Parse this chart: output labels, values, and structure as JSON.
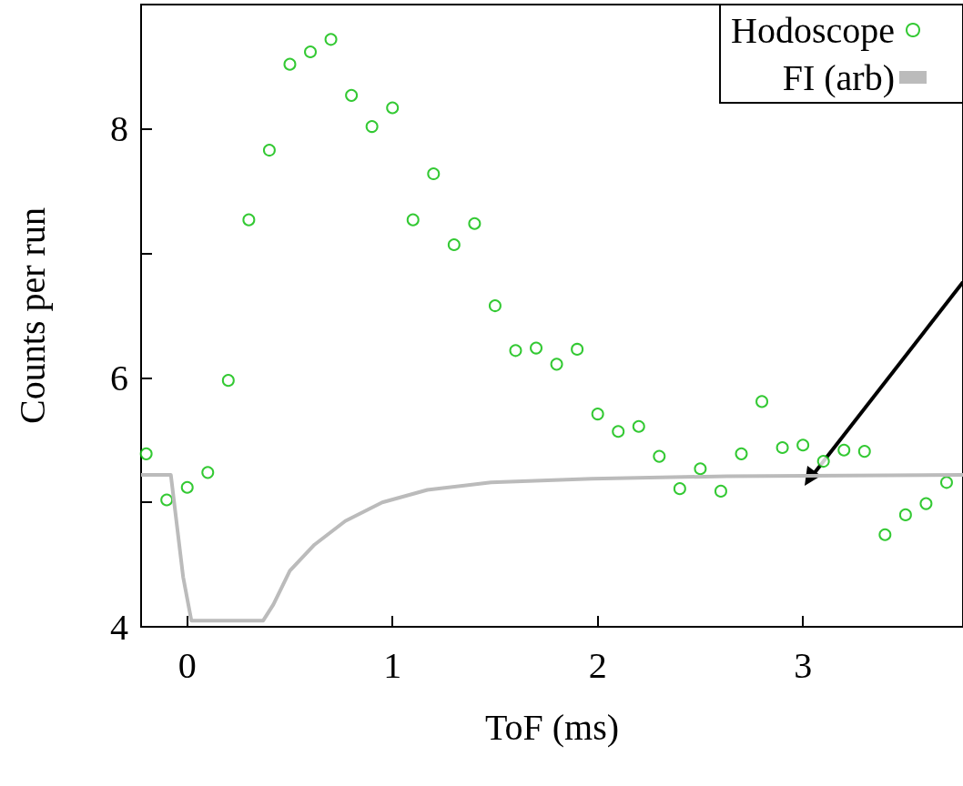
{
  "chart_data": {
    "type": "scatter",
    "xlabel": "ToF (ms)",
    "ylabel": "Counts per run",
    "xlim": [
      -0.225,
      3.78
    ],
    "xticks": [
      0,
      1,
      2,
      3
    ],
    "ylim": [
      4,
      9
    ],
    "yticks": [
      4,
      {
        "value": 5,
        "label": null
      },
      6,
      {
        "value": 7,
        "label": null
      },
      8
    ],
    "grid": false,
    "legend": "top right",
    "marker": "circle",
    "series": [
      {
        "name": "Hodoscope",
        "color": "#00bb00",
        "x": [
          -0.2,
          -0.1,
          0.0,
          0.1,
          0.2,
          0.3,
          0.4,
          0.5,
          0.6,
          0.7,
          0.8,
          0.9,
          1.0,
          1.1,
          1.2,
          1.3,
          1.4,
          1.5,
          1.6,
          1.7,
          1.8,
          1.9,
          2.0,
          2.1,
          2.2,
          2.3,
          2.4,
          2.5,
          2.6,
          2.7,
          2.8,
          2.9,
          3.0,
          3.1,
          3.2,
          3.3,
          3.4,
          3.5,
          3.6,
          3.7
        ],
        "values": [
          5.39,
          5.02,
          5.12,
          5.24,
          5.98,
          7.27,
          7.83,
          8.52,
          8.62,
          8.72,
          8.27,
          8.02,
          8.17,
          7.27,
          7.64,
          7.07,
          7.24,
          6.58,
          6.22,
          6.24,
          6.11,
          6.23,
          5.71,
          5.57,
          5.61,
          5.37,
          5.11,
          5.27,
          5.09,
          5.39,
          5.81,
          5.44,
          5.46,
          5.33,
          5.42,
          5.41,
          4.74,
          4.9,
          4.99,
          5.16
        ]
      },
      {
        "name": "FI (arb)",
        "type": "line",
        "color": "#bbbbbb",
        "marker": "none",
        "line_style": "solid",
        "x": [
          -0.225,
          -0.08,
          -0.02,
          0.02,
          0.37,
          0.42,
          0.5,
          0.62,
          0.77,
          0.95,
          1.17,
          1.48,
          1.97,
          2.63,
          3.78
        ],
        "values": [
          5.22,
          5.22,
          4.4,
          4.05,
          4.05,
          4.18,
          4.45,
          4.66,
          4.85,
          5.0,
          5.1,
          5.16,
          5.19,
          5.21,
          5.22
        ]
      }
    ]
  }
}
